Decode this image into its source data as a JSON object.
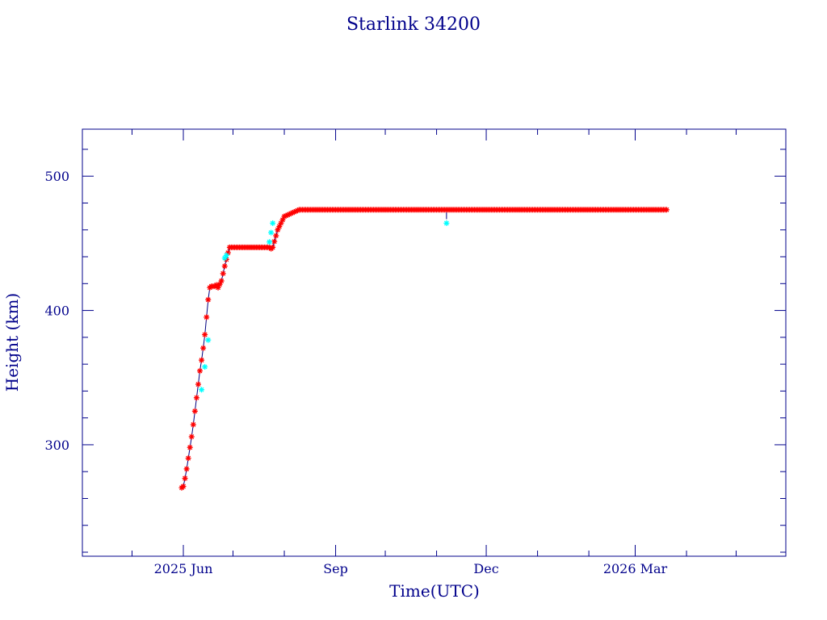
{
  "chart_data": {
    "type": "scatter",
    "title": "Starlink 34200",
    "xlabel": "Time(UTC)",
    "ylabel": "Height (km)",
    "xlim": [
      "2025-04-01",
      "2026-05-31"
    ],
    "ylim": [
      217,
      535
    ],
    "x_ticks": [
      {
        "date": "2025-06-01",
        "label": "2025 Jun"
      },
      {
        "date": "2025-09-01",
        "label": "Sep"
      },
      {
        "date": "2025-12-01",
        "label": "Dec"
      },
      {
        "date": "2026-03-01",
        "label": "2026 Mar"
      }
    ],
    "y_ticks": [
      300,
      400,
      500
    ],
    "grid": false,
    "colors": {
      "axis": "#00008b",
      "line": "#000080",
      "marker": "#ff0000",
      "highlight_marker": "#00ffff"
    },
    "series": [
      {
        "marker_color": "#ff0000",
        "line_color": "#000080",
        "x": [
          "2025-05-31",
          "2025-06-01",
          "2025-06-02",
          "2025-06-03",
          "2025-06-04",
          "2025-06-05",
          "2025-06-06",
          "2025-06-07",
          "2025-06-08",
          "2025-06-09",
          "2025-06-10",
          "2025-06-11",
          "2025-06-12",
          "2025-06-13",
          "2025-06-14",
          "2025-06-15",
          "2025-06-16",
          "2025-06-17",
          "2025-06-18",
          "2025-06-19",
          "2025-06-20",
          "2025-06-21",
          "2025-06-22",
          "2025-06-24",
          "2025-06-26",
          "2025-06-28",
          "2025-06-29",
          "2025-06-30",
          "2025-07-01",
          "2025-07-02",
          "2025-07-04",
          "2025-07-07",
          "2025-07-10",
          "2025-07-13",
          "2025-07-16",
          "2025-07-19",
          "2025-07-20",
          "2025-07-21",
          "2025-07-22",
          "2025-07-23",
          "2025-07-24",
          "2025-07-25",
          "2025-07-28",
          "2025-08-01",
          "2025-08-10",
          "2025-08-20",
          "2025-09-01",
          "2025-09-15",
          "2025-10-01",
          "2025-10-15",
          "2025-11-01",
          "2025-11-06",
          "2025-11-08",
          "2025-11-20",
          "2025-12-01",
          "2025-12-15",
          "2026-01-01",
          "2026-01-15",
          "2026-02-01",
          "2026-02-15",
          "2026-03-01",
          "2026-03-15",
          "2026-03-20"
        ],
        "y": [
          268,
          269,
          275,
          282,
          290,
          298,
          306,
          315,
          325,
          335,
          345,
          355,
          363,
          372,
          382,
          395,
          408,
          417,
          418,
          418,
          418,
          419,
          417,
          422,
          433,
          443,
          447,
          447,
          447,
          447,
          447,
          447,
          447,
          447,
          447,
          447,
          447,
          447,
          447,
          447,
          446,
          447,
          460,
          470,
          475,
          475,
          475,
          475,
          475,
          475,
          475,
          475,
          475,
          475,
          475,
          475,
          475,
          475,
          475,
          475,
          475,
          475,
          475
        ]
      },
      {
        "marker_color": "#00ffff",
        "x": [
          "2025-06-12",
          "2025-06-14",
          "2025-06-16",
          "2025-06-26",
          "2025-06-27",
          "2025-07-23",
          "2025-07-24",
          "2025-07-25",
          "2025-11-07"
        ],
        "y": [
          341,
          358,
          378,
          439,
          441,
          451,
          458,
          465,
          465
        ]
      }
    ]
  }
}
